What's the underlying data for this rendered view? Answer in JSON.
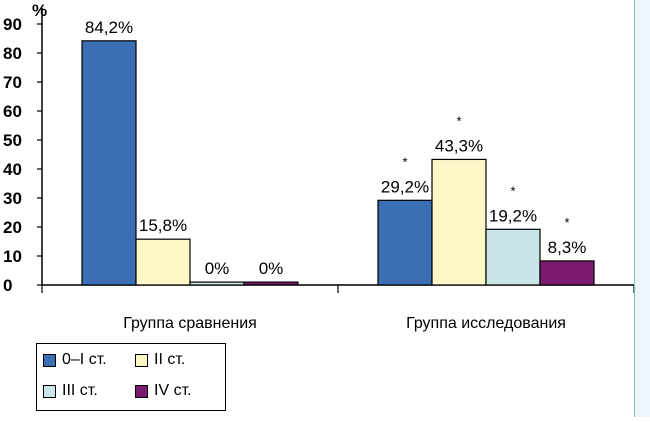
{
  "chart_data": {
    "type": "bar",
    "ylabel": "%",
    "ylim": [
      0,
      90
    ],
    "yticks": [
      "0",
      "10",
      "20",
      "30",
      "40",
      "50",
      "60",
      "70",
      "80",
      "90"
    ],
    "grid": false,
    "categories": [
      "Группа сравнения",
      "Группа исследования"
    ],
    "series": [
      {
        "name": "0–I ст.",
        "color": "#3c6eb4",
        "values": [
          84.2,
          29.2
        ],
        "labels": [
          "84,2%",
          "29,2%"
        ],
        "stars": [
          "",
          "*"
        ]
      },
      {
        "name": "II ст.",
        "color": "#fdf7c8",
        "values": [
          15.8,
          43.3
        ],
        "labels": [
          "15,8%",
          "43,3%"
        ],
        "stars": [
          "",
          "*"
        ]
      },
      {
        "name": "III ст.",
        "color": "#c8e6e8",
        "values": [
          0,
          19.2
        ],
        "labels": [
          "0%",
          "19,2%"
        ],
        "stars": [
          "",
          "*"
        ]
      },
      {
        "name": "IV ст.",
        "color": "#7b1a6e",
        "values": [
          0,
          8.3
        ],
        "labels": [
          "0%",
          "8,3%"
        ],
        "stars": [
          "",
          "*"
        ]
      }
    ],
    "legend_position": "bottom-left"
  }
}
